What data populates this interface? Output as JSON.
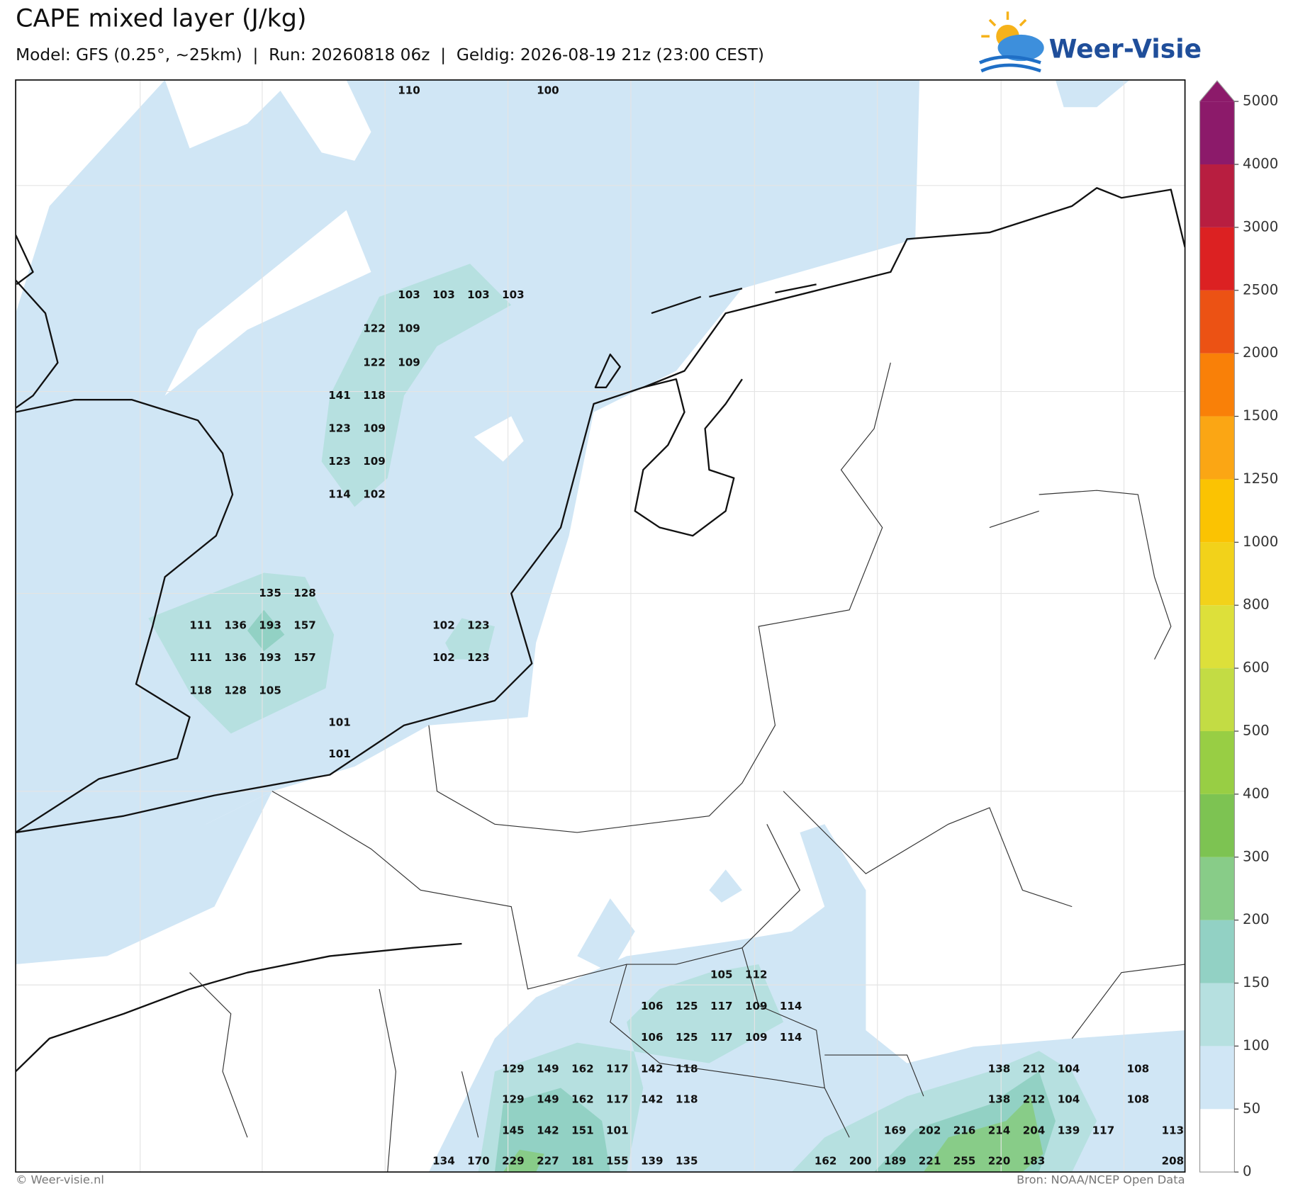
{
  "header": {
    "title": "CAPE mixed layer (J/kg)",
    "subtitle": "Model: GFS (0.25°, ~25km)  |  Run: 20260818 06z  |  Geldig: 2026-08-19 21z (23:00 CEST)",
    "logo": "Weer-Visie"
  },
  "colorbar": {
    "ticks": [
      0,
      50,
      100,
      150,
      200,
      300,
      400,
      500,
      600,
      800,
      1000,
      1250,
      1500,
      2000,
      2500,
      3000,
      4000,
      5000
    ],
    "colors": [
      "#ffffff",
      "#d0e6f5",
      "#b6e0e0",
      "#92d1c4",
      "#88cc88",
      "#7dc352",
      "#98ce44",
      "#c3dc44",
      "#dde03a",
      "#f2d21a",
      "#fbc302",
      "#fba614",
      "#f98008",
      "#ec5214",
      "#dc2122",
      "#b81e40",
      "#8c1a6a"
    ],
    "extend_color": "#8c1a6a"
  },
  "map_labels": [
    [
      110,
      100
    ],
    [
      103,
      103,
      103,
      103
    ],
    [
      122,
      109
    ],
    [
      122,
      109
    ],
    [
      141,
      118
    ],
    [
      123,
      109
    ],
    [
      123,
      109
    ],
    [
      114,
      102
    ],
    [
      135,
      128
    ],
    [
      111,
      136,
      193,
      157,
      102,
      123
    ],
    [
      111,
      136,
      193,
      157,
      102,
      123
    ],
    [
      118,
      128,
      105
    ],
    [
      101
    ],
    [
      101
    ],
    [
      105,
      112
    ],
    [
      106,
      125,
      117,
      109,
      114
    ],
    [
      106,
      125,
      117,
      109,
      114
    ],
    [
      129,
      149,
      162,
      117,
      142,
      118,
      138,
      212,
      104,
      108
    ],
    [
      129,
      149,
      162,
      117,
      142,
      118,
      138,
      212,
      104,
      108
    ],
    [
      145,
      142,
      151,
      101,
      169,
      202,
      216,
      214,
      204,
      139,
      117,
      113
    ],
    [
      134,
      170,
      229,
      227,
      181,
      155,
      139,
      135,
      162,
      200,
      189,
      221,
      255,
      220,
      183,
      208
    ]
  ],
  "footer": {
    "left": "© Weer-visie.nl",
    "right": "Bron: NOAA/NCEP Open Data"
  }
}
